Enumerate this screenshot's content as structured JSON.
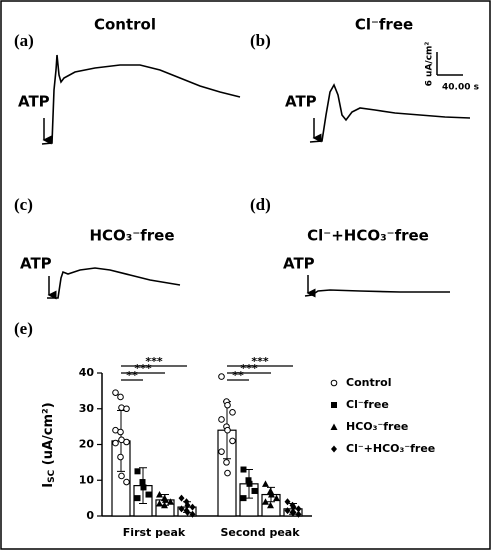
{
  "panels": [
    {
      "label": "(a)",
      "title": "Control",
      "stimulus": "ATP"
    },
    {
      "label": "(b)",
      "title": "Cl⁻free",
      "stimulus": "ATP"
    },
    {
      "label": "(c)",
      "title": "HCO₃⁻free",
      "stimulus": "ATP"
    },
    {
      "label": "(d)",
      "title": "Cl⁻+HCO₃⁻free",
      "stimulus": "ATP"
    }
  ],
  "scale_bar": {
    "y_label": "6 uA/cm²",
    "x_label": "40.00 s"
  },
  "chart_data": {
    "type": "bar",
    "panel_label": "(e)",
    "y_label_main": "I",
    "y_label_sub": "SC",
    "y_label_unit": "(uA/cm²)",
    "categories": [
      "First peak",
      "Second peak"
    ],
    "ylim": [
      0,
      40
    ],
    "yticks": [
      0,
      10,
      20,
      30,
      40
    ],
    "series": [
      {
        "name": "Control",
        "marker": "circle",
        "color": "#000000",
        "values": [
          21,
          24
        ],
        "errors": [
          8.5,
          8
        ],
        "points": [
          [
            34.5,
            33.3,
            30.3,
            30,
            24,
            23.5,
            21.3,
            20.7,
            20.4,
            16.5,
            11.2,
            9.5
          ],
          [
            39,
            32,
            31,
            29,
            27,
            25,
            24,
            21,
            18,
            15,
            12
          ]
        ]
      },
      {
        "name": "Cl⁻free",
        "marker": "square",
        "color": "#000000",
        "values": [
          8.5,
          9
        ],
        "errors": [
          5,
          4
        ],
        "points": [
          [
            12.5,
            9.5,
            8,
            6,
            5
          ],
          [
            13,
            10,
            9,
            7,
            5
          ]
        ]
      },
      {
        "name": "HCO₃⁻free",
        "marker": "triangle",
        "color": "#000000",
        "values": [
          4.5,
          6
        ],
        "errors": [
          1.5,
          2
        ],
        "points": [
          [
            6,
            5,
            4.5,
            4,
            3.5,
            3
          ],
          [
            9,
            7,
            6,
            5,
            4,
            3
          ]
        ]
      },
      {
        "name": "Cl⁻+HCO₃⁻free",
        "marker": "diamond",
        "color": "#000000",
        "values": [
          2.5,
          2
        ],
        "errors": [
          1.5,
          1.5
        ],
        "points": [
          [
            5,
            4,
            3,
            2.5,
            2,
            1.5,
            1,
            0.5
          ],
          [
            4,
            3,
            2.5,
            2,
            1.5,
            1,
            1,
            0.5
          ]
        ]
      }
    ],
    "significance": [
      [
        "**",
        "***",
        "***"
      ],
      [
        "**",
        "***",
        "***"
      ]
    ]
  }
}
